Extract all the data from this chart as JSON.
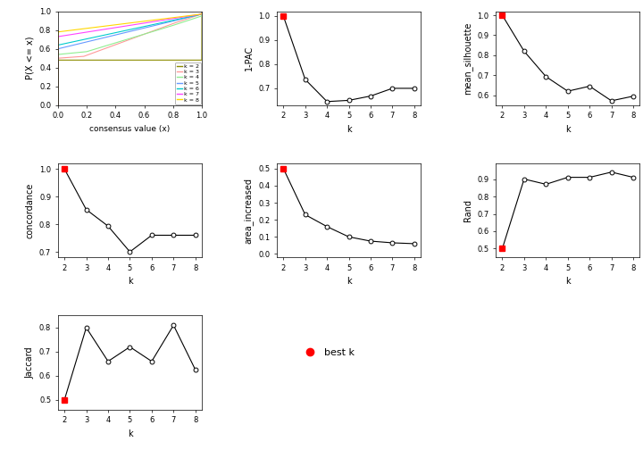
{
  "k_values": [
    2,
    3,
    4,
    5,
    6,
    7,
    8
  ],
  "one_pac": [
    1.0,
    0.737,
    0.645,
    0.65,
    0.668,
    0.7,
    0.7
  ],
  "mean_silhouette": [
    1.0,
    0.82,
    0.693,
    0.62,
    0.645,
    0.572,
    0.595
  ],
  "concordance": [
    1.0,
    0.853,
    0.793,
    0.7,
    0.76,
    0.76,
    0.76
  ],
  "area_increased": [
    0.5,
    0.23,
    0.16,
    0.1,
    0.075,
    0.065,
    0.06
  ],
  "rand": [
    0.5,
    0.9,
    0.87,
    0.91,
    0.91,
    0.94,
    0.91
  ],
  "jaccard": [
    0.5,
    0.8,
    0.66,
    0.72,
    0.66,
    0.81,
    0.625
  ],
  "best_k": 2,
  "cdf_colors": [
    "#8B8B00",
    "#FF9999",
    "#90EE90",
    "#6699FF",
    "#00CCCC",
    "#FF44FF",
    "#FFD700"
  ],
  "cdf_labels": [
    "k = 2",
    "k = 3",
    "k = 4",
    "k = 5",
    "k = 6",
    "k = 7",
    "k = 8"
  ],
  "bg_color": "#FFFFFF",
  "line_color": "#000000",
  "best_color": "#FF0000",
  "open_mfc": "white",
  "open_mec": "black"
}
